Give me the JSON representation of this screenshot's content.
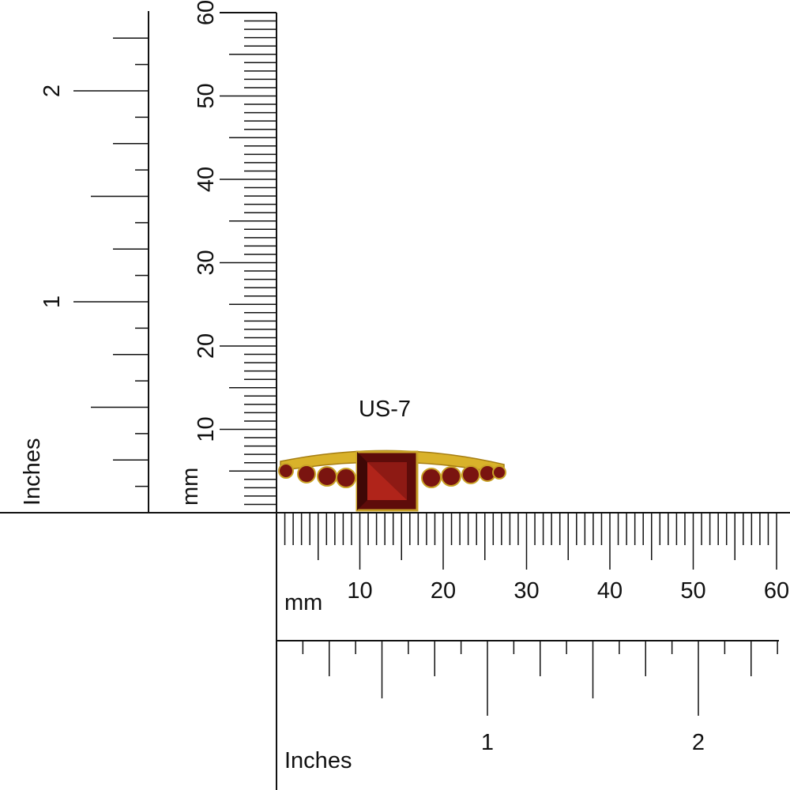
{
  "size_label": "US-7",
  "vertical_mm": {
    "unit": "mm",
    "labels": [
      10,
      20,
      30,
      40,
      50,
      60
    ]
  },
  "vertical_inches": {
    "unit": "Inches",
    "labels": [
      1,
      2
    ]
  },
  "horizontal_mm": {
    "unit": "mm",
    "labels": [
      10,
      20,
      30,
      40,
      50,
      60
    ]
  },
  "horizontal_inches": {
    "unit": "Inches",
    "labels": [
      1,
      2
    ]
  }
}
